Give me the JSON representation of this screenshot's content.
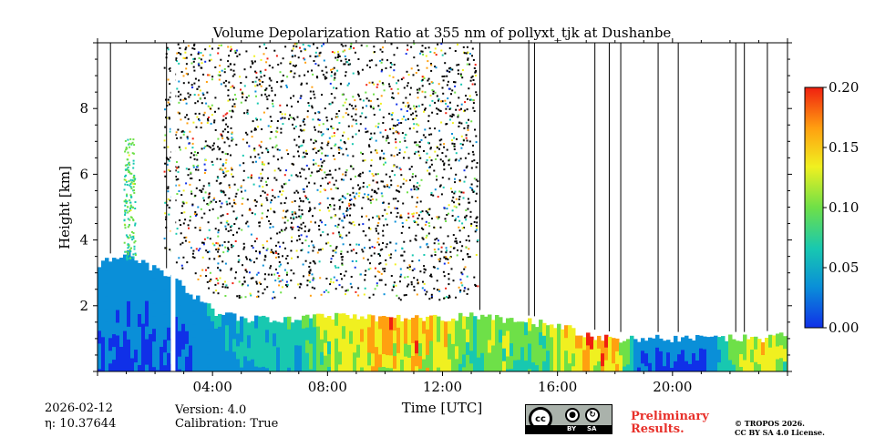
{
  "chart_data": {
    "type": "heatmap",
    "title": "Volume Depolarization Ratio at 355 nm of pollyxt_tjk at Dushanbe",
    "xlabel": "Time [UTC]",
    "ylabel": "Height [km]",
    "xlim_hours": [
      0,
      24
    ],
    "ylim_km": [
      0,
      10
    ],
    "x_ticks": [
      {
        "hour": 4,
        "label": "04:00"
      },
      {
        "hour": 8,
        "label": "08:00"
      },
      {
        "hour": 12,
        "label": "12:00"
      },
      {
        "hour": 16,
        "label": "16:00"
      },
      {
        "hour": 20,
        "label": "20:00"
      }
    ],
    "y_ticks": [
      {
        "km": 2,
        "label": "2"
      },
      {
        "km": 4,
        "label": "4"
      },
      {
        "km": 6,
        "label": "6"
      },
      {
        "km": 8,
        "label": "8"
      }
    ],
    "colorbar": {
      "range": [
        0.0,
        0.2
      ],
      "ticks": [
        {
          "value": 0.0,
          "label": "0.00"
        },
        {
          "value": 0.05,
          "label": "0.05"
        },
        {
          "value": 0.1,
          "label": "0.10"
        },
        {
          "value": 0.15,
          "label": "0.15"
        },
        {
          "value": 0.2,
          "label": "0.20"
        }
      ],
      "colors": [
        "#1030e8",
        "#0a8fd8",
        "#18c8b0",
        "#6ee048",
        "#f0f020",
        "#ffa010",
        "#f02010"
      ]
    },
    "layers": {
      "aerosol_layer_top_km": [
        [
          0.0,
          3.3
        ],
        [
          0.5,
          3.4
        ],
        [
          1.0,
          3.6
        ],
        [
          1.5,
          3.3
        ],
        [
          2.0,
          3.1
        ],
        [
          2.5,
          2.9
        ],
        [
          3.0,
          2.5
        ],
        [
          3.5,
          2.2
        ],
        [
          4.0,
          1.8
        ],
        [
          5.0,
          1.6
        ],
        [
          6.0,
          1.6
        ],
        [
          7.0,
          1.6
        ],
        [
          8.0,
          1.7
        ],
        [
          9.0,
          1.7
        ],
        [
          10.0,
          1.6
        ],
        [
          11.0,
          1.6
        ],
        [
          12.0,
          1.6
        ],
        [
          13.0,
          1.7
        ],
        [
          14.0,
          1.6
        ],
        [
          15.0,
          1.5
        ],
        [
          16.0,
          1.4
        ],
        [
          17.0,
          1.1
        ],
        [
          18.0,
          1.0
        ],
        [
          19.0,
          1.0
        ],
        [
          20.0,
          1.0
        ],
        [
          21.0,
          1.0
        ],
        [
          22.0,
          1.0
        ],
        [
          23.0,
          1.0
        ],
        [
          24.0,
          1.1
        ]
      ],
      "aerosol_depol": [
        [
          0.0,
          0.03
        ],
        [
          3.0,
          0.03
        ],
        [
          5.0,
          0.06
        ],
        [
          7.0,
          0.07
        ],
        [
          8.0,
          0.12
        ],
        [
          9.0,
          0.15
        ],
        [
          10.0,
          0.15
        ],
        [
          11.0,
          0.16
        ],
        [
          12.0,
          0.13
        ],
        [
          13.0,
          0.1
        ],
        [
          14.0,
          0.11
        ],
        [
          15.0,
          0.1
        ],
        [
          16.0,
          0.12
        ],
        [
          17.0,
          0.17
        ],
        [
          18.0,
          0.15
        ],
        [
          18.8,
          0.03
        ],
        [
          21.0,
          0.02
        ],
        [
          22.5,
          0.13
        ],
        [
          24.0,
          0.12
        ]
      ],
      "noise_region": {
        "start_hour": 2.3,
        "end_hour": 13.2,
        "bottom_km": 2.0,
        "top_km": 10.0
      }
    }
  },
  "footer": {
    "date": "2026-02-12",
    "eta_label": "η: ",
    "eta_value": "10.37644",
    "version": "Version: 4.0",
    "calibration": "Calibration: True",
    "preliminary_line1": "Preliminary",
    "preliminary_line2": "Results.",
    "copyright_line1": "© TROPOS 2026.",
    "copyright_line2": "CC BY SA 4.0 License.",
    "cc_badge": {
      "cc": "cc",
      "by": "BY",
      "sa": "SA"
    }
  }
}
